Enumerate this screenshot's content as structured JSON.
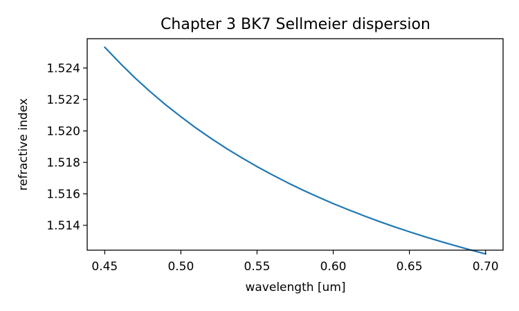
{
  "chart_data": {
    "type": "line",
    "title": "Chapter 3 BK7 Sellmeier dispersion",
    "xlabel": "wavelength [um]",
    "ylabel": "refractive index",
    "xlim": [
      0.4385,
      0.7115
    ],
    "ylim": [
      1.51242,
      1.52586
    ],
    "xticks": [
      {
        "value": 0.45,
        "label": "0.45"
      },
      {
        "value": 0.5,
        "label": "0.50"
      },
      {
        "value": 0.55,
        "label": "0.55"
      },
      {
        "value": 0.6,
        "label": "0.60"
      },
      {
        "value": 0.65,
        "label": "0.65"
      },
      {
        "value": 0.7,
        "label": "0.70"
      }
    ],
    "yticks": [
      {
        "value": 1.514,
        "label": "1.514"
      },
      {
        "value": 1.516,
        "label": "1.516"
      },
      {
        "value": 1.518,
        "label": "1.518"
      },
      {
        "value": 1.52,
        "label": "1.520"
      },
      {
        "value": 1.522,
        "label": "1.522"
      },
      {
        "value": 1.524,
        "label": "1.524"
      }
    ],
    "grid": false,
    "series": [
      {
        "color": "#1f77b4",
        "x": [
          0.45,
          0.46,
          0.47,
          0.48,
          0.49,
          0.5,
          0.51,
          0.52,
          0.53,
          0.54,
          0.55,
          0.56,
          0.57,
          0.58,
          0.59,
          0.6,
          0.61,
          0.62,
          0.63,
          0.64,
          0.65,
          0.66,
          0.67,
          0.68,
          0.69,
          0.7
        ],
        "y": [
          1.52532,
          1.52431,
          1.52336,
          1.52248,
          1.52166,
          1.5209,
          1.52018,
          1.51951,
          1.51888,
          1.51829,
          1.51773,
          1.51721,
          1.51671,
          1.51624,
          1.5158,
          1.51538,
          1.51499,
          1.51461,
          1.51425,
          1.51391,
          1.51359,
          1.51328,
          1.51299,
          1.51271,
          1.51244,
          1.51218
        ]
      }
    ]
  }
}
